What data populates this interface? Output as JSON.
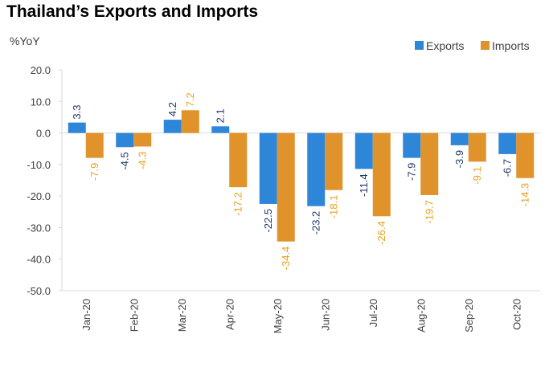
{
  "chart_data": {
    "type": "bar",
    "title": "Thailand’s Exports and Imports",
    "ylabel": "%YoY",
    "xlabel": "",
    "categories": [
      "Jan-20",
      "Feb-20",
      "Mar-20",
      "Apr-20",
      "May-20",
      "Jun-20",
      "Jul-20",
      "Aug-20",
      "Sep-20",
      "Oct-20"
    ],
    "series": [
      {
        "name": "Exports",
        "color": "#2E86D9",
        "label_color": "#1F3864",
        "values": [
          3.3,
          -4.5,
          4.2,
          2.1,
          -22.5,
          -23.2,
          -11.4,
          -7.9,
          -3.9,
          -6.7
        ]
      },
      {
        "name": "Imports",
        "color": "#E0922B",
        "label_color": "#E8A020",
        "values": [
          -7.9,
          -4.3,
          7.2,
          -17.2,
          -34.4,
          -18.1,
          -26.4,
          -19.7,
          -9.1,
          -14.3
        ]
      }
    ],
    "ylim": [
      -50,
      20
    ],
    "yticks": [
      20,
      10,
      0,
      -10,
      -20,
      -30,
      -40,
      -50
    ],
    "ytick_labels": [
      "20.0",
      "10.0",
      "0.0",
      "-10.0",
      "-20.0",
      "-30.0",
      "-40.0",
      "-50.0"
    ],
    "grid": false,
    "legend_position": "top-right"
  }
}
